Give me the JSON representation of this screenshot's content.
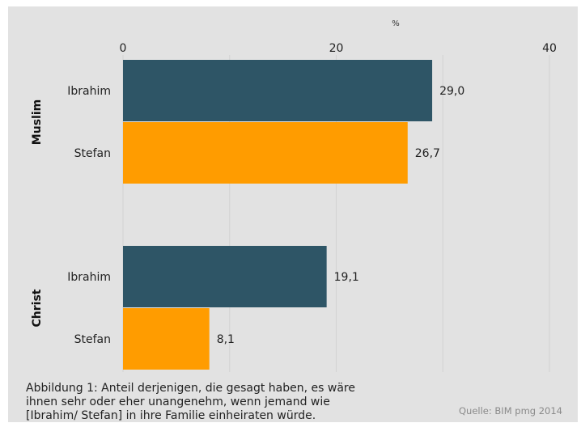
{
  "chart_data": {
    "type": "bar",
    "orientation": "horizontal",
    "unit_label": "%",
    "xlim": [
      0,
      40
    ],
    "x_ticks": [
      "0",
      "20",
      "40"
    ],
    "grid": true,
    "groups": [
      {
        "name": "Muslim",
        "bars": [
          {
            "category": "Ibrahim",
            "value": 29.0,
            "label": "29,0"
          },
          {
            "category": "Stefan",
            "value": 26.7,
            "label": "26,7"
          }
        ]
      },
      {
        "name": "Christ",
        "bars": [
          {
            "category": "Ibrahim",
            "value": 19.1,
            "label": "19,1"
          },
          {
            "category": "Stefan",
            "value": 8.1,
            "label": "8,1"
          }
        ]
      }
    ],
    "colors": {
      "Ibrahim": "#2e5566",
      "Stefan": "#ff9c00"
    }
  },
  "caption": "Abbildung 1: Anteil derjenigen, die gesagt haben, es wäre ihnen sehr oder eher unangenehm, wenn jemand wie [Ibrahim/ Stefan] in ihre Familie einheiraten würde.",
  "source": "Quelle: BIM pmg 2014"
}
